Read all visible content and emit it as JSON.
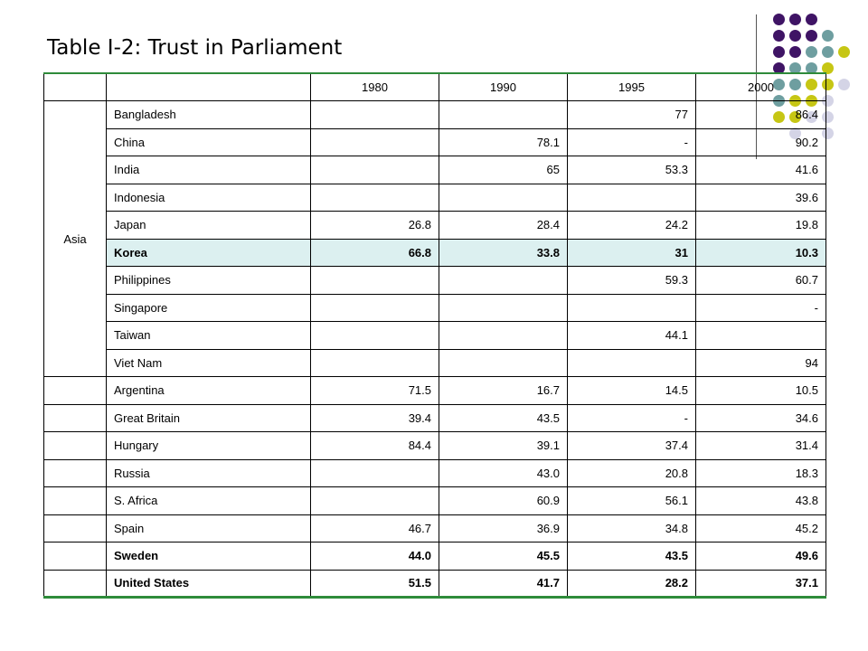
{
  "title": "Table I-2: Trust in Parliament",
  "colors": {
    "purple": "#3f1465",
    "teal": "#6e9ea0",
    "lime": "#c6c614",
    "lavender": "#d4d4e6",
    "border_green": "#2e8b3a",
    "highlight": "#dcf0f0"
  },
  "table": {
    "years": [
      "1980",
      "1990",
      "1995",
      "2000"
    ],
    "asia_label": "Asia",
    "asia_rows": [
      {
        "country": "Bangladesh",
        "v1980": "",
        "v1990": "",
        "v1995": "77",
        "v2000": "86.4"
      },
      {
        "country": "China",
        "v1980": "",
        "v1990": "78.1",
        "v1995": "-",
        "v2000": "90.2"
      },
      {
        "country": "India",
        "v1980": "",
        "v1990": "65",
        "v1995": "53.3",
        "v2000": "41.6"
      },
      {
        "country": "Indonesia",
        "v1980": "",
        "v1990": "",
        "v1995": "",
        "v2000": "39.6"
      },
      {
        "country": "Japan",
        "v1980": "26.8",
        "v1990": "28.4",
        "v1995": "24.2",
        "v2000": "19.8"
      },
      {
        "country": "Korea",
        "v1980": "66.8",
        "v1990": "33.8",
        "v1995": "31",
        "v2000": "10.3"
      },
      {
        "country": "Philippines",
        "v1980": "",
        "v1990": "",
        "v1995": "59.3",
        "v2000": "60.7"
      },
      {
        "country": "Singapore",
        "v1980": "",
        "v1990": "",
        "v1995": "",
        "v2000": "-"
      },
      {
        "country": "Taiwan",
        "v1980": "",
        "v1990": "",
        "v1995": "44.1",
        "v2000": ""
      },
      {
        "country": "Viet Nam",
        "v1980": "",
        "v1990": "",
        "v1995": "",
        "v2000": "94"
      }
    ],
    "other_rows": [
      {
        "country": "Argentina",
        "v1980": "71.5",
        "v1990": "16.7",
        "v1995": "14.5",
        "v2000": "10.5"
      },
      {
        "country": "Great Britain",
        "v1980": "39.4",
        "v1990": "43.5",
        "v1995": "-",
        "v2000": "34.6"
      },
      {
        "country": "Hungary",
        "v1980": "84.4",
        "v1990": "39.1",
        "v1995": "37.4",
        "v2000": "31.4"
      },
      {
        "country": "Russia",
        "v1980": "",
        "v1990": "43.0",
        "v1995": "20.8",
        "v2000": "18.3"
      },
      {
        "country": "S. Africa",
        "v1980": "",
        "v1990": "60.9",
        "v1995": "56.1",
        "v2000": "43.8"
      },
      {
        "country": "Spain",
        "v1980": "46.7",
        "v1990": "36.9",
        "v1995": "34.8",
        "v2000": "45.2"
      },
      {
        "country": "Sweden",
        "v1980": "44.0",
        "v1990": "45.5",
        "v1995": "43.5",
        "v2000": "49.6"
      },
      {
        "country": "United States",
        "v1980": "51.5",
        "v1990": "41.7",
        "v1995": "28.2",
        "v2000": "37.1"
      }
    ]
  }
}
